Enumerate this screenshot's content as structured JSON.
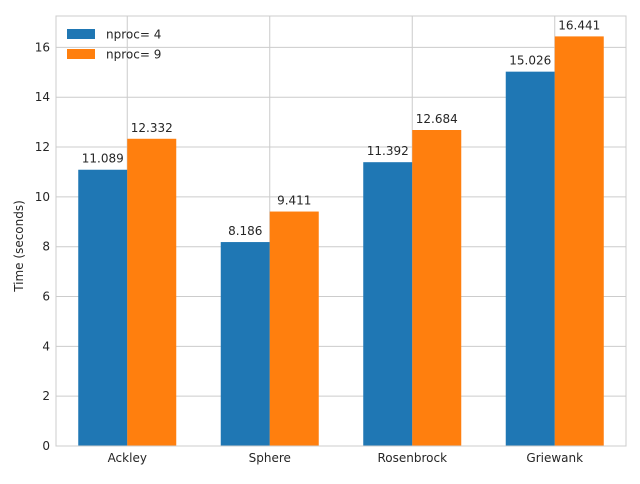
{
  "chart_data": {
    "type": "bar",
    "title": "",
    "xlabel": "",
    "ylabel": "Time (seconds)",
    "categories": [
      "Ackley",
      "Sphere",
      "Rosenbrock",
      "Griewank"
    ],
    "series": [
      {
        "name": "nproc= 4",
        "values": [
          11.089,
          8.186,
          11.392,
          15.026
        ],
        "color": "#1f77b4"
      },
      {
        "name": "nproc= 9",
        "values": [
          12.332,
          9.411,
          12.684,
          16.441
        ],
        "color": "#ff7f0e"
      }
    ],
    "value_labels": [
      [
        "11.089",
        "8.186",
        "11.392",
        "15.026"
      ],
      [
        "12.332",
        "9.411",
        "12.684",
        "16.441"
      ]
    ],
    "ylim": [
      0,
      17.26
    ],
    "yticks": [
      "0",
      "2",
      "4",
      "6",
      "8",
      "10",
      "12",
      "14",
      "16"
    ],
    "grid": true,
    "legend_position": "top-left",
    "style": "seaborn-whitegrid"
  }
}
